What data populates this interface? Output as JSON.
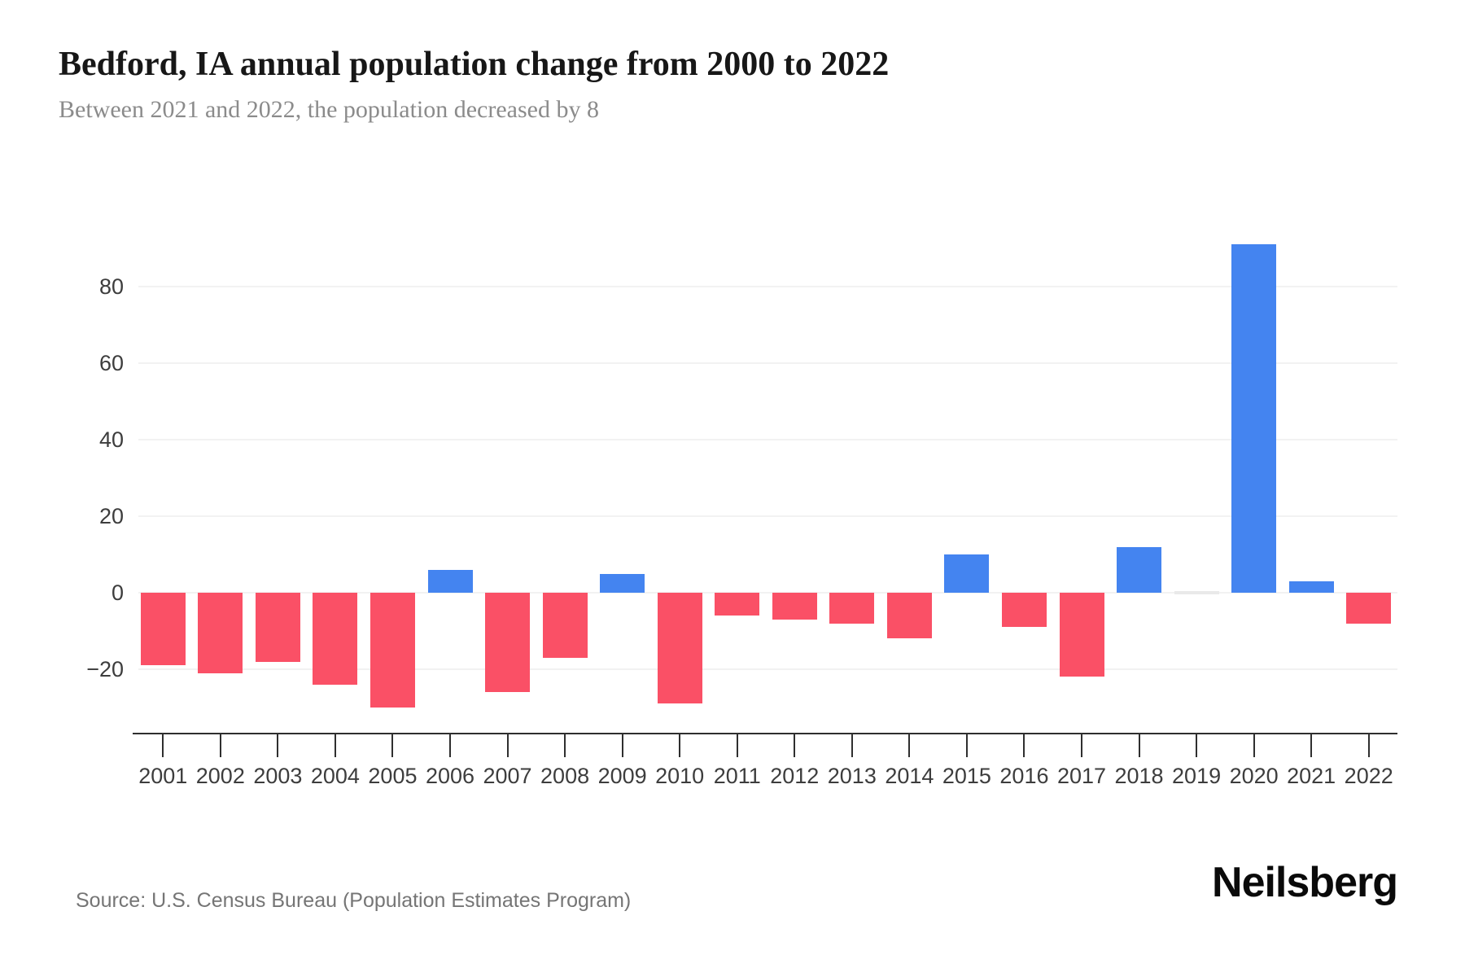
{
  "header": {
    "title": "Bedford, IA annual population change from 2000 to 2022",
    "subtitle": "Between 2021 and 2022, the population decreased by 8"
  },
  "footer": {
    "source": "Source: U.S. Census Bureau (Population Estimates Program)",
    "brand": "Neilsberg"
  },
  "colors": {
    "positive_bar": "#4484F0",
    "negative_bar": "#FA5066",
    "zero_bar": "#E9E9E9",
    "gridline": "#F2F2F2",
    "axis": "#2F2F2F",
    "title_text": "#171717",
    "subtitle_text": "#8B8B8B",
    "tick_label": "#3D3D3D",
    "source_text": "#757575"
  },
  "chart_data": {
    "type": "bar",
    "title": "Bedford, IA annual population change from 2000 to 2022",
    "xlabel": "",
    "ylabel": "",
    "categories": [
      "2001",
      "2002",
      "2003",
      "2004",
      "2005",
      "2006",
      "2007",
      "2008",
      "2009",
      "2010",
      "2011",
      "2012",
      "2013",
      "2014",
      "2015",
      "2016",
      "2017",
      "2018",
      "2019",
      "2020",
      "2021",
      "2022"
    ],
    "values": [
      -19,
      -21,
      -18,
      -24,
      -30,
      6,
      -26,
      -17,
      5,
      -29,
      -6,
      -7,
      -8,
      -12,
      10,
      -9,
      -22,
      12,
      0,
      91,
      3,
      -8
    ],
    "yticks": [
      -20,
      0,
      20,
      40,
      60,
      80
    ],
    "ylim": [
      -36,
      95
    ],
    "grid": true,
    "legend": false
  }
}
